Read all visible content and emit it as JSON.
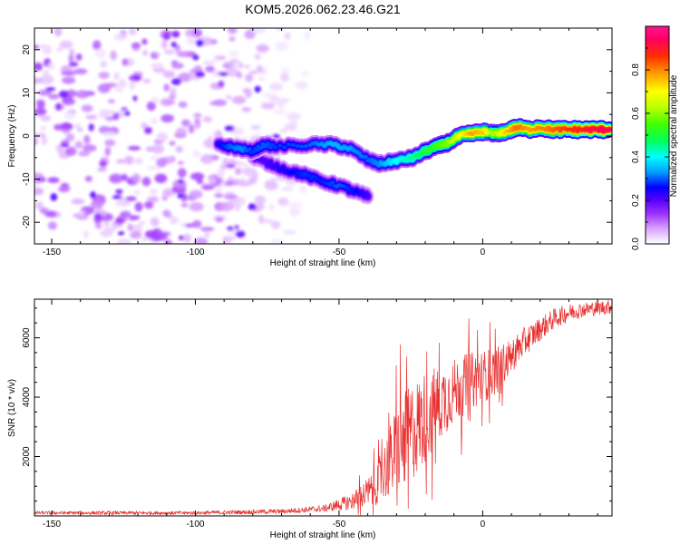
{
  "title": "KOM5.2026.062.23.46.G21",
  "chart_data": [
    {
      "type": "heatmap",
      "xlabel": "Height of straight line (km)",
      "ylabel": "Frequency (Hz)",
      "xlim": [
        -156,
        45
      ],
      "ylim": [
        -25,
        25
      ],
      "xticks": [
        -150,
        -100,
        -50,
        0
      ],
      "yticks": [
        20,
        10,
        0,
        -10,
        -20
      ],
      "colorbar": {
        "label": "Normalized spectral amplitude",
        "range": [
          0,
          1
        ],
        "ticks": [
          "0.0",
          "0.2",
          "0.4",
          "0.6",
          "0.8"
        ],
        "colors": [
          "#ffffff",
          "#d9a3ff",
          "#9b30ff",
          "#5a00ff",
          "#0000ff",
          "#00a0ff",
          "#00ffff",
          "#00ff60",
          "#40ff00",
          "#c0ff00",
          "#ffff00",
          "#ffa000",
          "#ff3000",
          "#ff0060",
          "#ff1493"
        ]
      },
      "ridge": [
        {
          "x": -92,
          "y": -2,
          "v": 0.25
        },
        {
          "x": -88,
          "y": -2.5,
          "v": 0.3
        },
        {
          "x": -84,
          "y": -3,
          "v": 0.32
        },
        {
          "x": -80,
          "y": -3.5,
          "v": 0.28
        },
        {
          "x": -76,
          "y": -2,
          "v": 0.3
        },
        {
          "x": -72,
          "y": -2.5,
          "v": 0.28
        },
        {
          "x": -60,
          "y": -2,
          "v": 0.3
        },
        {
          "x": -52,
          "y": -2,
          "v": 0.35
        },
        {
          "x": -46,
          "y": -3,
          "v": 0.33
        },
        {
          "x": -40,
          "y": -5.5,
          "v": 0.3
        },
        {
          "x": -36,
          "y": -6.5,
          "v": 0.32
        },
        {
          "x": -32,
          "y": -6,
          "v": 0.38
        },
        {
          "x": -28,
          "y": -5.5,
          "v": 0.42
        },
        {
          "x": -24,
          "y": -5,
          "v": 0.45
        },
        {
          "x": -20,
          "y": -3.5,
          "v": 0.5
        },
        {
          "x": -16,
          "y": -2.5,
          "v": 0.55
        },
        {
          "x": -12,
          "y": -1.5,
          "v": 0.6
        },
        {
          "x": -8,
          "y": 0,
          "v": 0.68
        },
        {
          "x": -4,
          "y": 0.5,
          "v": 0.78
        },
        {
          "x": 0,
          "y": 1,
          "v": 0.75
        },
        {
          "x": 4,
          "y": 0.5,
          "v": 0.6
        },
        {
          "x": 8,
          "y": 1,
          "v": 0.75
        },
        {
          "x": 12,
          "y": 2,
          "v": 0.82
        },
        {
          "x": 16,
          "y": 1.5,
          "v": 0.78
        },
        {
          "x": 20,
          "y": 2,
          "v": 0.8
        },
        {
          "x": 24,
          "y": 1.5,
          "v": 0.82
        },
        {
          "x": 28,
          "y": 1.5,
          "v": 0.85
        },
        {
          "x": 32,
          "y": 1.5,
          "v": 0.87
        },
        {
          "x": 36,
          "y": 1.5,
          "v": 0.9
        },
        {
          "x": 40,
          "y": 1.5,
          "v": 0.93
        },
        {
          "x": 44,
          "y": 1.5,
          "v": 0.95
        }
      ],
      "branch": [
        {
          "x": -80,
          "y": -5,
          "v": 0.2
        },
        {
          "x": -74,
          "y": -6.5,
          "v": 0.22
        },
        {
          "x": -68,
          "y": -8,
          "v": 0.25
        },
        {
          "x": -62,
          "y": -9,
          "v": 0.28
        },
        {
          "x": -56,
          "y": -10.5,
          "v": 0.27
        },
        {
          "x": -50,
          "y": -11.5,
          "v": 0.3
        },
        {
          "x": -44,
          "y": -13,
          "v": 0.26
        },
        {
          "x": -40,
          "y": -14,
          "v": 0.22
        }
      ],
      "noise": {
        "x_range": [
          -156,
          -60
        ],
        "y_range": [
          -25,
          25
        ],
        "peak_amplitude": 0.12
      }
    },
    {
      "type": "line",
      "xlabel": "Height of straight line (km)",
      "ylabel": "SNR (10 * v/v)",
      "xlim": [
        -156,
        45
      ],
      "ylim": [
        0,
        7300
      ],
      "xticks": [
        -150,
        -100,
        -50,
        0
      ],
      "yticks": [
        2000,
        4000,
        6000
      ],
      "color": "#e83030",
      "series_profile": [
        {
          "x": -156,
          "y": 100,
          "spread": 60
        },
        {
          "x": -100,
          "y": 100,
          "spread": 60
        },
        {
          "x": -70,
          "y": 150,
          "spread": 80
        },
        {
          "x": -55,
          "y": 250,
          "spread": 120
        },
        {
          "x": -45,
          "y": 500,
          "spread": 300
        },
        {
          "x": -38,
          "y": 900,
          "spread": 600
        },
        {
          "x": -35,
          "y": 1400,
          "spread": 900
        },
        {
          "x": -30,
          "y": 2200,
          "spread": 1500
        },
        {
          "x": -25,
          "y": 2800,
          "spread": 1700
        },
        {
          "x": -20,
          "y": 3300,
          "spread": 1600
        },
        {
          "x": -15,
          "y": 3800,
          "spread": 1300
        },
        {
          "x": -10,
          "y": 4200,
          "spread": 1100
        },
        {
          "x": -5,
          "y": 4500,
          "spread": 1000
        },
        {
          "x": 0,
          "y": 4700,
          "spread": 900
        },
        {
          "x": 5,
          "y": 4900,
          "spread": 800
        },
        {
          "x": 10,
          "y": 5400,
          "spread": 600
        },
        {
          "x": 15,
          "y": 5900,
          "spread": 500
        },
        {
          "x": 20,
          "y": 6300,
          "spread": 400
        },
        {
          "x": 25,
          "y": 6650,
          "spread": 350
        },
        {
          "x": 30,
          "y": 6850,
          "spread": 300
        },
        {
          "x": 35,
          "y": 6950,
          "spread": 250
        },
        {
          "x": 45,
          "y": 7050,
          "spread": 250
        }
      ]
    }
  ]
}
